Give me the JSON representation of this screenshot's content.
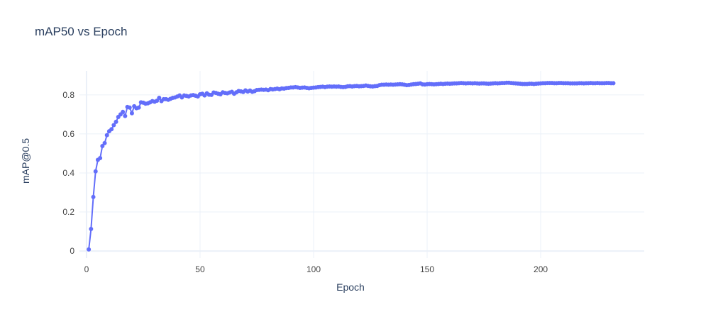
{
  "chart_data": {
    "type": "line",
    "title": "mAP50 vs Epoch",
    "x_label": "Epoch",
    "y_label": "mAP@0.5",
    "xlim": [
      -3.1,
      245.6
    ],
    "ylim": [
      -0.036,
      0.923
    ],
    "xticks": [
      0,
      50,
      100,
      150,
      200
    ],
    "yticks": [
      0,
      0.2,
      0.4,
      0.6,
      0.8
    ],
    "grid": true,
    "markers": true,
    "x": [
      1,
      2,
      3,
      4,
      5,
      6,
      7,
      8,
      9,
      10,
      11,
      12,
      13,
      14,
      15,
      16,
      17,
      18,
      19,
      20,
      21,
      22,
      23,
      24,
      25,
      26,
      27,
      28,
      29,
      30,
      31,
      32,
      33,
      34,
      35,
      36,
      37,
      38,
      39,
      40,
      41,
      42,
      43,
      44,
      45,
      46,
      47,
      48,
      49,
      50,
      51,
      52,
      53,
      54,
      55,
      56,
      57,
      58,
      59,
      60,
      61,
      62,
      63,
      64,
      65,
      66,
      67,
      68,
      69,
      70,
      71,
      72,
      73,
      74,
      75,
      76,
      77,
      78,
      79,
      80,
      81,
      82,
      83,
      84,
      85,
      86,
      87,
      88,
      89,
      90,
      91,
      92,
      93,
      94,
      95,
      96,
      97,
      98,
      99,
      100,
      101,
      102,
      103,
      104,
      105,
      106,
      107,
      108,
      109,
      110,
      111,
      112,
      113,
      114,
      115,
      116,
      117,
      118,
      119,
      120,
      121,
      122,
      123,
      124,
      125,
      126,
      127,
      128,
      129,
      130,
      131,
      132,
      133,
      134,
      135,
      136,
      137,
      138,
      139,
      140,
      141,
      142,
      143,
      144,
      145,
      146,
      147,
      148,
      149,
      150,
      151,
      152,
      153,
      154,
      155,
      156,
      157,
      158,
      159,
      160,
      161,
      162,
      163,
      164,
      165,
      166,
      167,
      168,
      169,
      170,
      171,
      172,
      173,
      174,
      175,
      176,
      177,
      178,
      179,
      180,
      181,
      182,
      183,
      184,
      185,
      186,
      187,
      188,
      189,
      190,
      191,
      192,
      193,
      194,
      195,
      196,
      197,
      198,
      199,
      200,
      201,
      202,
      203,
      204,
      205,
      206,
      207,
      208,
      209,
      210,
      211,
      212,
      213,
      214,
      215,
      216,
      217,
      218,
      219,
      220,
      221,
      222,
      223,
      224,
      225,
      226,
      227,
      228,
      229,
      230,
      231,
      232
    ],
    "series": [
      {
        "color": "#636efa",
        "values": [
          0.008,
          0.113,
          0.277,
          0.408,
          0.467,
          0.476,
          0.538,
          0.553,
          0.594,
          0.614,
          0.624,
          0.645,
          0.662,
          0.687,
          0.7,
          0.713,
          0.692,
          0.738,
          0.735,
          0.706,
          0.742,
          0.732,
          0.735,
          0.762,
          0.76,
          0.755,
          0.757,
          0.762,
          0.768,
          0.765,
          0.77,
          0.785,
          0.768,
          0.778,
          0.778,
          0.775,
          0.78,
          0.785,
          0.787,
          0.792,
          0.797,
          0.787,
          0.797,
          0.795,
          0.792,
          0.797,
          0.799,
          0.796,
          0.792,
          0.803,
          0.806,
          0.797,
          0.808,
          0.801,
          0.8,
          0.812,
          0.81,
          0.806,
          0.803,
          0.813,
          0.81,
          0.808,
          0.812,
          0.816,
          0.806,
          0.813,
          0.82,
          0.818,
          0.815,
          0.823,
          0.817,
          0.822,
          0.816,
          0.819,
          0.825,
          0.826,
          0.827,
          0.826,
          0.827,
          0.824,
          0.83,
          0.828,
          0.83,
          0.832,
          0.829,
          0.833,
          0.832,
          0.835,
          0.836,
          0.838,
          0.838,
          0.84,
          0.838,
          0.836,
          0.837,
          0.838,
          0.836,
          0.834,
          0.836,
          0.837,
          0.838,
          0.84,
          0.841,
          0.842,
          0.84,
          0.842,
          0.843,
          0.842,
          0.843,
          0.842,
          0.843,
          0.841,
          0.84,
          0.841,
          0.844,
          0.845,
          0.843,
          0.845,
          0.846,
          0.844,
          0.845,
          0.846,
          0.848,
          0.846,
          0.844,
          0.843,
          0.845,
          0.846,
          0.85,
          0.852,
          0.852,
          0.853,
          0.852,
          0.853,
          0.852,
          0.853,
          0.854,
          0.855,
          0.854,
          0.852,
          0.85,
          0.851,
          0.853,
          0.855,
          0.856,
          0.857,
          0.859,
          0.854,
          0.853,
          0.855,
          0.856,
          0.855,
          0.854,
          0.855,
          0.856,
          0.857,
          0.856,
          0.857,
          0.858,
          0.857,
          0.858,
          0.859,
          0.859,
          0.86,
          0.861,
          0.86,
          0.859,
          0.86,
          0.86,
          0.859,
          0.86,
          0.859,
          0.858,
          0.859,
          0.859,
          0.858,
          0.857,
          0.858,
          0.859,
          0.86,
          0.859,
          0.86,
          0.861,
          0.861,
          0.862,
          0.862,
          0.861,
          0.86,
          0.859,
          0.858,
          0.857,
          0.856,
          0.856,
          0.856,
          0.857,
          0.857,
          0.856,
          0.857,
          0.858,
          0.859,
          0.86,
          0.86,
          0.861,
          0.861,
          0.861,
          0.86,
          0.86,
          0.861,
          0.861,
          0.86,
          0.86,
          0.86,
          0.859,
          0.859,
          0.859,
          0.859,
          0.86,
          0.86,
          0.859,
          0.86,
          0.86,
          0.861,
          0.86,
          0.86,
          0.861,
          0.86,
          0.86,
          0.86,
          0.861,
          0.861,
          0.86,
          0.86
        ]
      }
    ]
  }
}
